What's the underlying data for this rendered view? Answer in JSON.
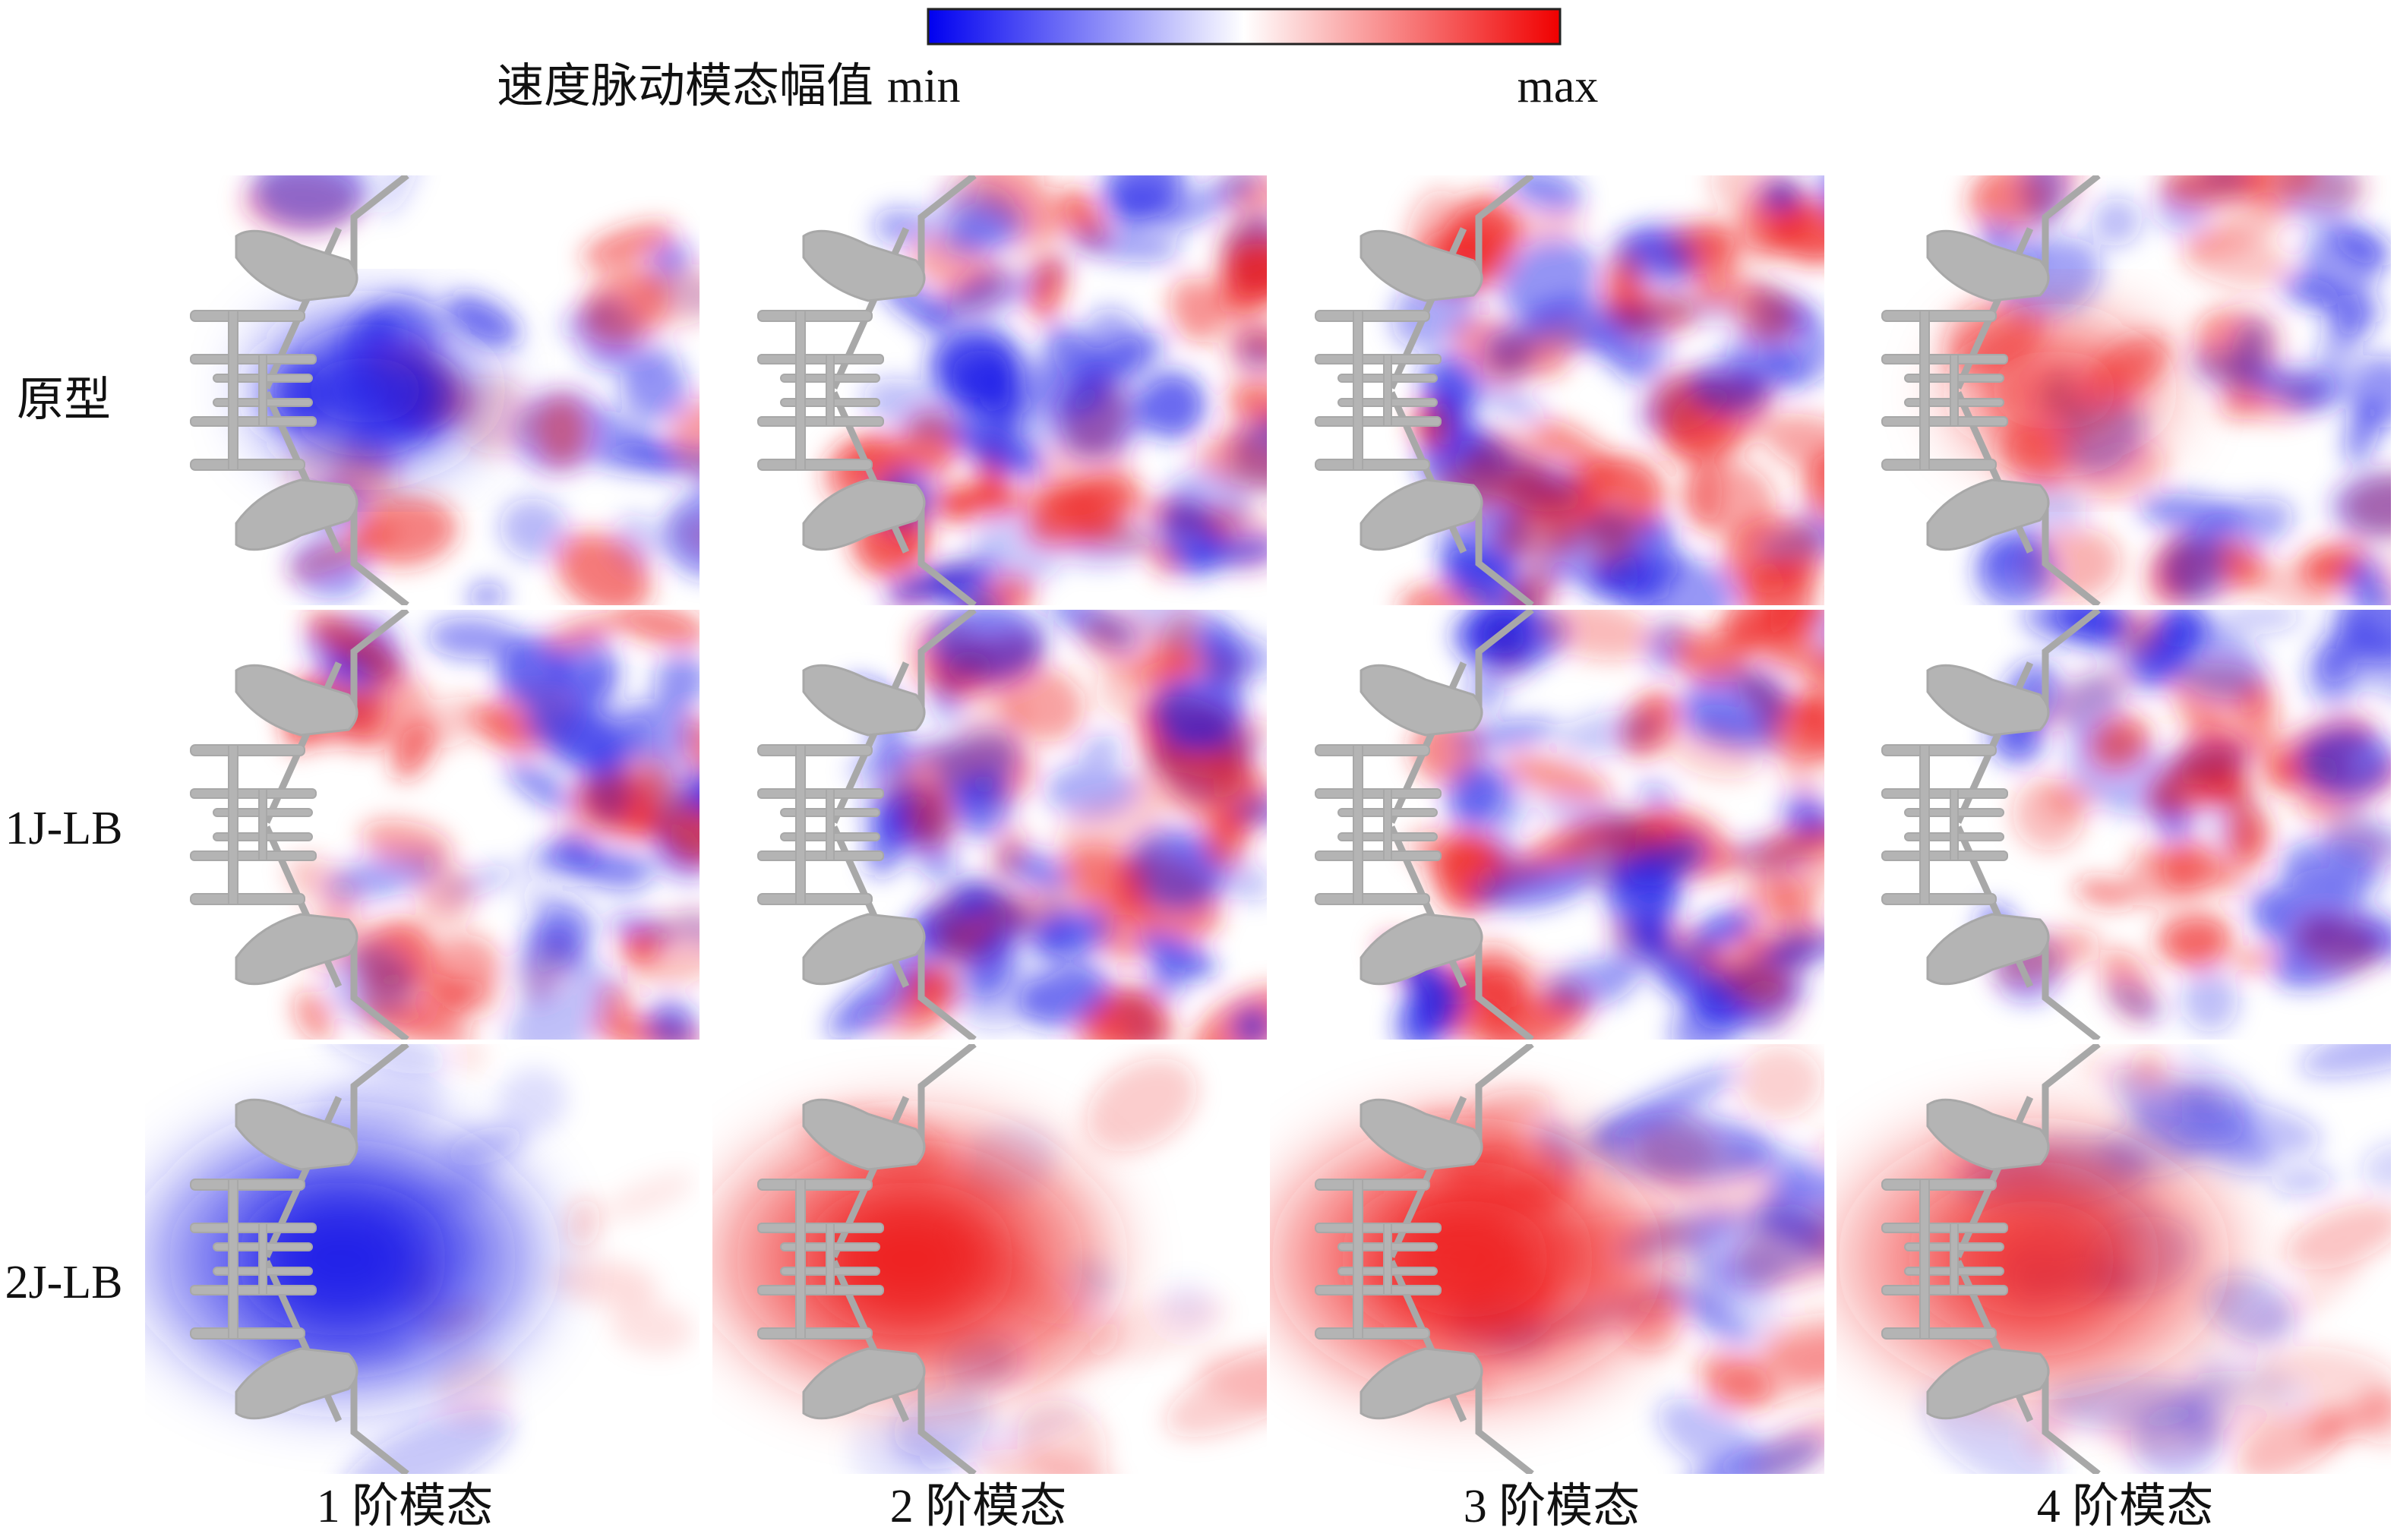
{
  "colorbar": {
    "title": "速度脉动模态幅值",
    "min": "min",
    "max": "max"
  },
  "rows": [
    "原型",
    "1J-LB",
    "2J-LB"
  ],
  "columns": [
    "1 阶模态",
    "2 阶模态",
    "3 阶模态",
    "4 阶模态"
  ]
}
